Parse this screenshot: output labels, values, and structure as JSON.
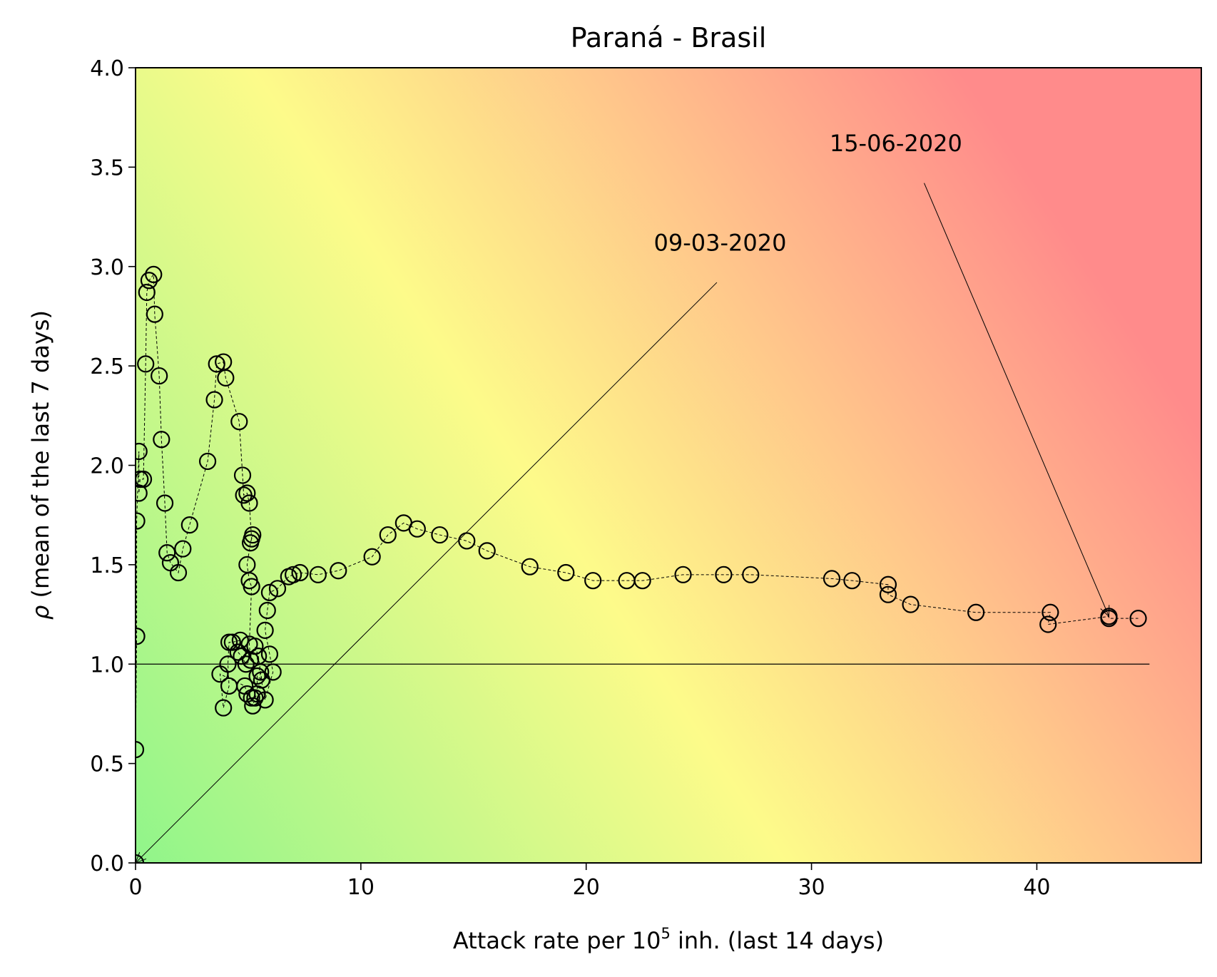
{
  "chart_data": {
    "type": "scatter",
    "title": "Paraná - Brasil",
    "xlabel": {
      "main": "Attack rate per 10",
      "sup": "5",
      "rest": " inh. (last 14 days)"
    },
    "ylabel": {
      "symbol": "ρ",
      "rest": " (mean of the last 7 days)"
    },
    "xlim": [
      0,
      47.3
    ],
    "ylim": [
      0,
      4.0
    ],
    "xticks": [
      0,
      10,
      20,
      30,
      40
    ],
    "xtick_labels": [
      "0",
      "10",
      "20",
      "30",
      "40"
    ],
    "yticks": [
      0,
      0.5,
      1.0,
      1.5,
      2.0,
      2.5,
      3.0,
      3.5,
      4.0
    ],
    "ytick_labels": [
      "0.0",
      "0.5",
      "1.0",
      "1.5",
      "2.0",
      "2.5",
      "3.0",
      "3.5",
      "4.0"
    ],
    "reference_line": {
      "y": 1.0,
      "x_range": [
        0,
        45
      ]
    },
    "background": {
      "type": "risk-gradient",
      "colors": {
        "low": "#90f58a",
        "mid": "#fdfb8a",
        "orange": "#ffc48b",
        "high": "#ff8b8b"
      }
    },
    "marker": {
      "style": "open-circle",
      "edge_color": "#000000",
      "line_style": "dashed"
    },
    "points": [
      [
        0.0,
        0.0
      ],
      [
        0.0,
        0.57
      ],
      [
        0.05,
        1.14
      ],
      [
        0.05,
        1.72
      ],
      [
        0.15,
        2.07
      ],
      [
        0.15,
        1.86
      ],
      [
        0.2,
        1.93
      ],
      [
        0.35,
        1.93
      ],
      [
        0.45,
        2.51
      ],
      [
        0.5,
        2.87
      ],
      [
        0.6,
        2.93
      ],
      [
        0.8,
        2.96
      ],
      [
        0.85,
        2.76
      ],
      [
        1.05,
        2.45
      ],
      [
        1.15,
        2.13
      ],
      [
        1.3,
        1.81
      ],
      [
        1.4,
        1.56
      ],
      [
        1.55,
        1.51
      ],
      [
        1.9,
        1.46
      ],
      [
        2.1,
        1.58
      ],
      [
        2.4,
        1.7
      ],
      [
        3.2,
        2.02
      ],
      [
        3.5,
        2.33
      ],
      [
        3.6,
        2.51
      ],
      [
        3.9,
        2.52
      ],
      [
        4.0,
        2.44
      ],
      [
        4.6,
        2.22
      ],
      [
        4.75,
        1.95
      ],
      [
        4.8,
        1.85
      ],
      [
        4.95,
        1.86
      ],
      [
        5.05,
        1.81
      ],
      [
        5.15,
        1.63
      ],
      [
        5.2,
        1.65
      ],
      [
        5.1,
        1.61
      ],
      [
        4.95,
        1.5
      ],
      [
        5.05,
        1.42
      ],
      [
        5.15,
        1.39
      ],
      [
        5.05,
        1.1
      ],
      [
        5.1,
        1.02
      ],
      [
        4.9,
        1.0
      ],
      [
        4.7,
        1.04
      ],
      [
        4.55,
        1.06
      ],
      [
        4.65,
        1.12
      ],
      [
        4.3,
        1.11
      ],
      [
        4.15,
        1.11
      ],
      [
        4.1,
        1.0
      ],
      [
        4.15,
        0.89
      ],
      [
        3.9,
        0.78
      ],
      [
        3.75,
        0.95
      ],
      [
        4.85,
        0.89
      ],
      [
        4.95,
        0.85
      ],
      [
        5.15,
        0.83
      ],
      [
        5.2,
        0.79
      ],
      [
        5.3,
        0.83
      ],
      [
        5.4,
        0.85
      ],
      [
        5.4,
        0.94
      ],
      [
        5.6,
        0.92
      ],
      [
        5.55,
        0.96
      ],
      [
        5.45,
        1.04
      ],
      [
        5.3,
        1.09
      ],
      [
        5.75,
        0.82
      ],
      [
        6.1,
        0.96
      ],
      [
        5.95,
        1.05
      ],
      [
        5.75,
        1.17
      ],
      [
        5.85,
        1.27
      ],
      [
        5.95,
        1.36
      ],
      [
        6.3,
        1.38
      ],
      [
        6.8,
        1.44
      ],
      [
        7.0,
        1.45
      ],
      [
        7.3,
        1.46
      ],
      [
        8.1,
        1.45
      ],
      [
        9.0,
        1.47
      ],
      [
        10.5,
        1.54
      ],
      [
        11.2,
        1.65
      ],
      [
        11.9,
        1.71
      ],
      [
        12.5,
        1.68
      ],
      [
        13.5,
        1.65
      ],
      [
        14.7,
        1.62
      ],
      [
        15.6,
        1.57
      ],
      [
        17.5,
        1.49
      ],
      [
        19.1,
        1.46
      ],
      [
        20.3,
        1.42
      ],
      [
        21.8,
        1.42
      ],
      [
        22.5,
        1.42
      ],
      [
        24.3,
        1.45
      ],
      [
        26.1,
        1.45
      ],
      [
        27.3,
        1.45
      ],
      [
        30.9,
        1.43
      ],
      [
        31.8,
        1.42
      ],
      [
        33.4,
        1.4
      ],
      [
        33.4,
        1.35
      ],
      [
        34.4,
        1.3
      ],
      [
        37.3,
        1.26
      ],
      [
        40.6,
        1.26
      ],
      [
        40.5,
        1.2
      ],
      [
        43.2,
        1.24
      ],
      [
        43.2,
        1.23
      ],
      [
        44.5,
        1.23
      ]
    ],
    "annotations": [
      {
        "text": "09-03-2020",
        "point": [
          0.0,
          0.0
        ],
        "text_pos": [
          23.0,
          3.08
        ],
        "line_start": [
          25.8,
          2.92
        ]
      },
      {
        "text": "15-06-2020",
        "point": [
          43.2,
          1.24
        ],
        "text_pos": [
          30.8,
          3.58
        ],
        "line_start": [
          35.0,
          3.42
        ]
      }
    ]
  }
}
